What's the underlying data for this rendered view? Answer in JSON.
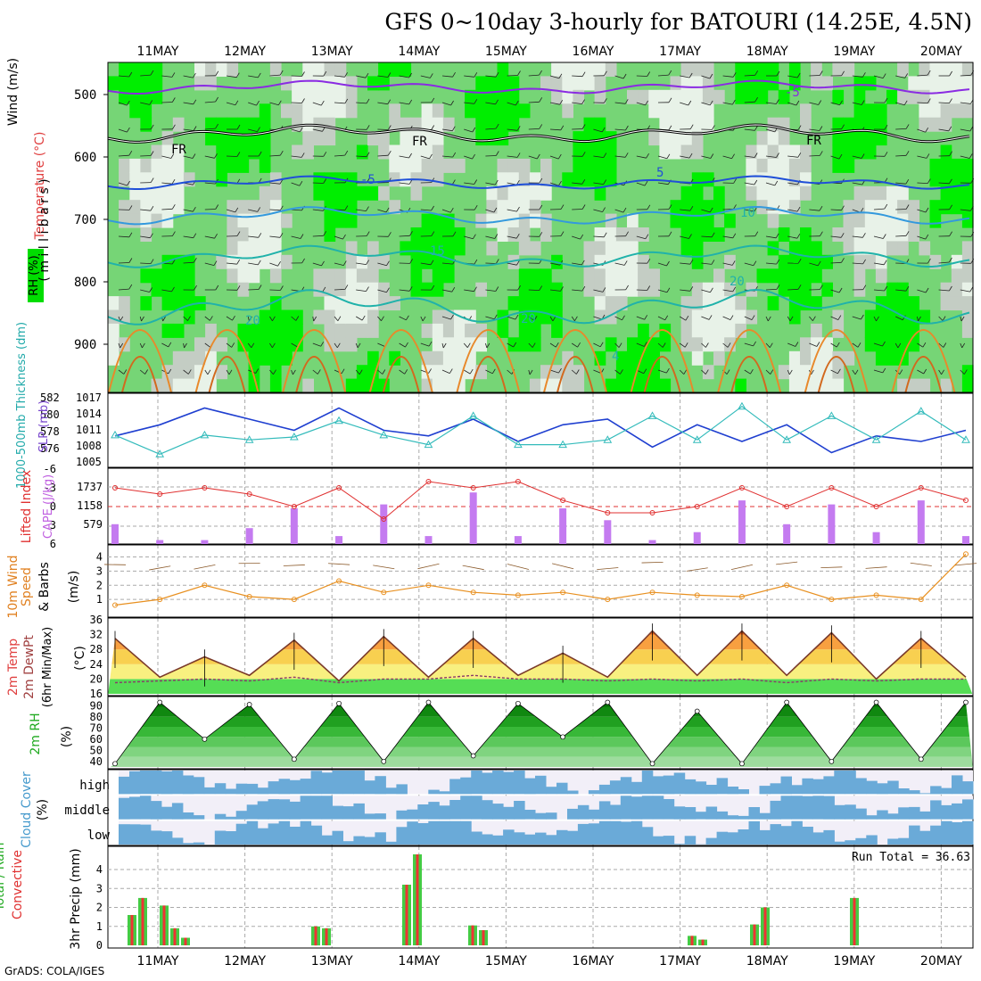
{
  "title": "GFS 0~10day 3-hourly for BATOURI (14.25E, 4.5N)",
  "credit": "GrADS: COLA/IGES",
  "date_labels": [
    "11MAY",
    "12MAY",
    "13MAY",
    "14MAY",
    "15MAY",
    "16MAY",
    "17MAY",
    "18MAY",
    "19MAY",
    "20MAY"
  ],
  "colors": {
    "rh_dark": "#00ee00",
    "rh_mid": "#76d576",
    "rh_light": "#c4cdc4",
    "rh_pale": "#e8f2e8",
    "temp_purple": "#8a2be2",
    "temp_blue": "#1f4fd8",
    "temp_cyan": "#3399dd",
    "temp_teal": "#20b2aa",
    "temp_orange": "#e8892b",
    "slp": "#1f3fd0",
    "thickness": "#33bbbb",
    "lifted": "#e03030",
    "cape": "#c47bf0",
    "wind10m": "#e89020",
    "cloud": "#6aaad8",
    "cloud_clear": "#f2eff8",
    "precip_total": "#44cc44",
    "precip_conv": "#ee3333"
  },
  "panels": {
    "upper": {
      "ylabel_left": "Wind (m/s)",
      "ylabel_temp": "Temperature (°C)",
      "ylabel_rh": "RH (%)",
      "ylabel_unit": "( m i l l i b a r s )",
      "yticks": [
        "500",
        "600",
        "700",
        "800",
        "900"
      ],
      "contour_labels": [
        "-5",
        "FR",
        "FR",
        "FR",
        "-5",
        "5",
        "10",
        "15",
        "20",
        "20",
        "20",
        "4"
      ]
    },
    "slp": {
      "ylabel_left": "1000-500mb Thickness (dm)",
      "ylabel_right": "SLP (mb)",
      "left_ticks": [
        "582",
        "580",
        "578",
        "576"
      ],
      "right_ticks": [
        "1017",
        "1014",
        "1011",
        "1008",
        "1005"
      ]
    },
    "li": {
      "ylabel_left": "Lifted Index",
      "ylabel_right": "CAPE (J/kg)",
      "left_ticks": [
        "-6",
        "-3",
        "0",
        "3",
        "6"
      ],
      "right_ticks": [
        "1737",
        "1158",
        "579"
      ]
    },
    "wind": {
      "ylabel_1": "10m Wind",
      "ylabel_2": "Speed",
      "ylabel_3": "& Barbs",
      "ylabel_unit": "(m/s)",
      "ticks": [
        "4",
        "3",
        "2",
        "1"
      ]
    },
    "temp": {
      "ylabel_1": "2m Temp",
      "ylabel_2": "2m DewPt",
      "ylabel_3": "(6hr Min/Max)",
      "ylabel_unit": "(°C)",
      "ticks": [
        "36",
        "32",
        "28",
        "24",
        "20",
        "16"
      ]
    },
    "rh": {
      "ylabel": "2m RH",
      "ylabel_unit": "(%)",
      "ticks": [
        "90",
        "80",
        "70",
        "60",
        "50",
        "40"
      ]
    },
    "cloud": {
      "ylabel": "Cloud Cover",
      "ylabel_unit": "(%)",
      "levels": [
        "high",
        "middle",
        "low"
      ]
    },
    "precip": {
      "ylabel_1": "Total / Rain",
      "ylabel_2": "Convective",
      "ylabel_unit": "3hr Precip (mm)",
      "ticks": [
        "4",
        "3",
        "2",
        "1",
        "0"
      ],
      "run_total": "Run Total = 36.63"
    }
  },
  "chart_data": [
    {
      "type": "line",
      "name": "slp",
      "xlabel": "",
      "ylabel": "SLP (mb)",
      "ylim": [
        1005,
        1017
      ],
      "x_days": [
        "10MAY 12Z",
        "11MAY",
        "11MAY 12Z",
        "12MAY",
        "12MAY 12Z",
        "13MAY",
        "13MAY 12Z",
        "14MAY",
        "14MAY 12Z",
        "15MAY",
        "15MAY 12Z",
        "16MAY",
        "16MAY 12Z",
        "17MAY",
        "17MAY 12Z",
        "18MAY",
        "18MAY 12Z",
        "19MAY",
        "19MAY 12Z",
        "20MAY"
      ],
      "values": [
        1010,
        1012,
        1015,
        1013,
        1011,
        1015,
        1011,
        1010,
        1013,
        1009,
        1012,
        1013,
        1008,
        1012,
        1009,
        1012,
        1007,
        1010,
        1009,
        1011
      ]
    },
    {
      "type": "line",
      "name": "thickness",
      "ylabel": "1000-500mb Thickness (dm)",
      "ylim": [
        575.5,
        582.5
      ],
      "values": [
        578.5,
        576.5,
        578.5,
        578,
        578.3,
        580,
        578.5,
        577.5,
        580.5,
        577.5,
        577.5,
        578,
        580.5,
        578,
        581.5,
        578,
        580.5,
        578,
        581,
        578
      ]
    },
    {
      "type": "bar",
      "name": "cape",
      "ylabel": "CAPE (J/kg)",
      "values": [
        500,
        100,
        100,
        400,
        900,
        200,
        1000,
        200,
        1300,
        200,
        900,
        600,
        100,
        300,
        1100,
        500,
        1000,
        300,
        1100,
        200
      ]
    },
    {
      "type": "line",
      "name": "lifted_index",
      "ylabel": "Lifted Index",
      "values": [
        -3,
        -2,
        -3,
        -2,
        0,
        -3,
        2,
        -4,
        -3,
        -4,
        -1,
        1,
        1,
        0,
        -3,
        0,
        -3,
        0,
        -3,
        -1
      ]
    },
    {
      "type": "line",
      "name": "wind_speed_10m",
      "ylabel": "(m/s)",
      "ylim": [
        0,
        4.6
      ],
      "values": [
        0.6,
        1.0,
        2.0,
        1.2,
        1.0,
        2.3,
        1.5,
        2.0,
        1.5,
        1.3,
        1.5,
        1.0,
        1.5,
        1.3,
        1.2,
        2.0,
        1.0,
        1.3,
        1.0,
        4.2
      ]
    },
    {
      "type": "area",
      "name": "temperature_2m",
      "ylabel": "(°C)",
      "ylim": [
        16,
        36
      ],
      "values": [
        31,
        20.5,
        26,
        21,
        30.5,
        19.5,
        31.5,
        20.5,
        31,
        21,
        27,
        20.5,
        33,
        21,
        33,
        21,
        32.5,
        20,
        31,
        20.5
      ]
    },
    {
      "type": "line",
      "name": "dewpoint_2m",
      "values": [
        19,
        19.5,
        20,
        19.5,
        20.5,
        19,
        20,
        20,
        21,
        20,
        20,
        19.5,
        20,
        19.5,
        20,
        19,
        20,
        19.5,
        20,
        20
      ]
    },
    {
      "type": "area",
      "name": "rh_2m",
      "ylabel": "(%)",
      "ylim": [
        35,
        95
      ],
      "values": [
        38,
        93,
        60,
        91,
        42,
        92,
        40,
        93,
        45,
        92,
        62,
        93,
        38,
        85,
        38,
        93,
        40,
        93,
        42,
        93
      ]
    },
    {
      "type": "bar",
      "name": "precip_3hr",
      "ylabel": "3hr Precip (mm)",
      "ylim": [
        0,
        4.8
      ],
      "x_days": [
        "11MAY",
        "11MAY 06Z",
        "12MAY",
        "13MAY",
        "13MAY 06Z",
        "14MAY",
        "14MAY 06Z",
        "15MAY",
        "16MAY",
        "17MAY",
        "17MAY 06Z",
        "18MAY",
        "18MAY 06Z",
        "19MAY",
        "19MAY 06Z",
        "20MAY"
      ],
      "values": [
        1.6,
        2.5,
        2.1,
        0.9,
        0.4,
        1.0,
        0.9,
        3.2,
        4.8,
        1.05,
        0.8,
        0.5,
        0.3,
        1.1,
        2.0,
        2.5
      ]
    }
  ]
}
